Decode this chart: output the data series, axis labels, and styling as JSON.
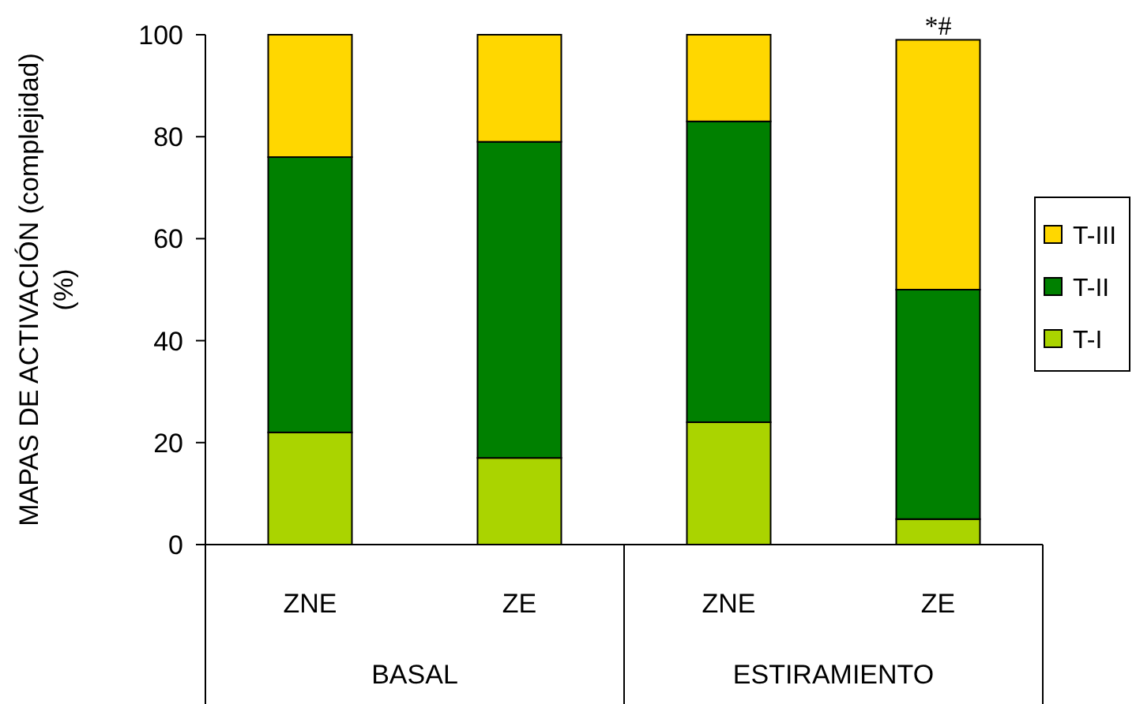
{
  "chart_data": {
    "type": "bar",
    "stacked": true,
    "ylabel": "MAPAS DE ACTIVACIÓN (complejidad)\n(%)",
    "categories": [
      "ZNE",
      "ZE",
      "ZNE",
      "ZE"
    ],
    "series": [
      {
        "name": "T-I",
        "color": "#aad400",
        "values": [
          22,
          17,
          24,
          5
        ]
      },
      {
        "name": "T-II",
        "color": "#008000",
        "values": [
          54,
          62,
          59,
          45
        ]
      },
      {
        "name": "T-III",
        "color": "#ffd700",
        "values": [
          24,
          21,
          17,
          49
        ]
      }
    ],
    "ylim": [
      0,
      100
    ],
    "yticks": [
      0,
      20,
      40,
      60,
      80,
      100
    ],
    "legend": "right",
    "grid": false,
    "annotations": [
      "*#",
      "BASAL",
      "ESTIRAMIENTO"
    ]
  }
}
